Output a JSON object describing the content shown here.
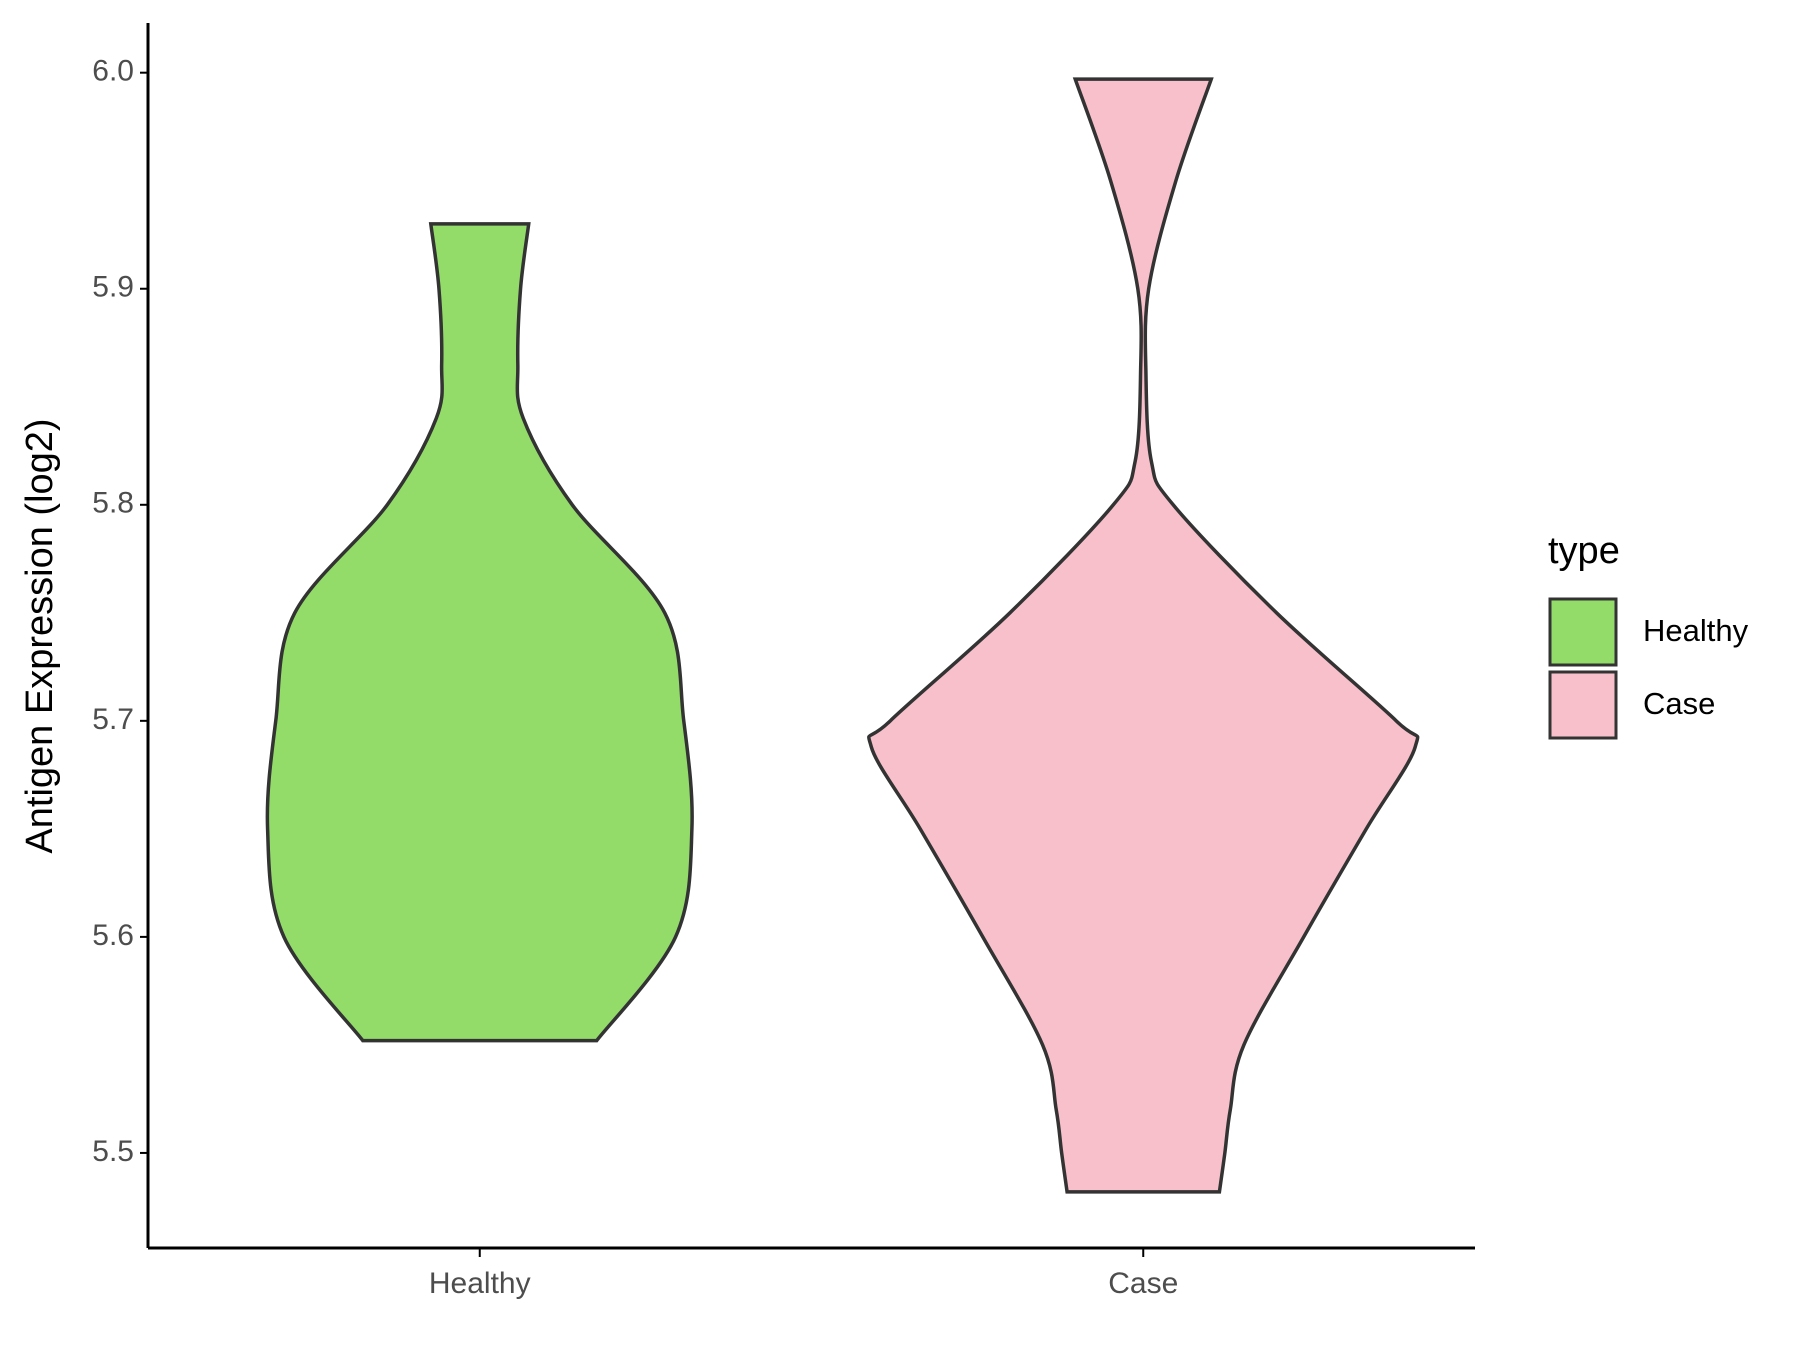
{
  "chart_data": {
    "type": "violin",
    "y_label": "Antigen Expression (log2)",
    "categories": [
      "Healthy",
      "Case"
    ],
    "legend_title": "type",
    "legend_position": "right",
    "ylim": [
      5.456,
      6.023
    ],
    "yticks": [
      {
        "value": 5.5,
        "label": "5.5"
      },
      {
        "value": 5.6,
        "label": "5.6"
      },
      {
        "value": 5.7,
        "label": "5.7"
      },
      {
        "value": 5.8,
        "label": "5.8"
      },
      {
        "value": 5.9,
        "label": "5.9"
      },
      {
        "value": 6.0,
        "label": "6.0"
      }
    ],
    "series": [
      {
        "name": "Healthy",
        "color": "#93dc6a",
        "y": [
          5.552,
          5.6,
          5.65,
          5.7,
          5.75,
          5.8,
          5.84,
          5.865,
          5.9,
          5.93
        ],
        "density": [
          0.43,
          0.72,
          0.78,
          0.75,
          0.68,
          0.34,
          0.16,
          0.14,
          0.15,
          0.18
        ]
      },
      {
        "name": "Case",
        "color": "#f8c0cb",
        "y": [
          5.482,
          5.5,
          5.52,
          5.55,
          5.6,
          5.65,
          5.688,
          5.7,
          5.75,
          5.8,
          5.82,
          5.86,
          5.9,
          5.95,
          5.997
        ],
        "density": [
          0.28,
          0.3,
          0.32,
          0.37,
          0.59,
          0.82,
          1,
          0.93,
          0.49,
          0.11,
          0.03,
          0.01,
          0.02,
          0.12,
          0.25
        ]
      }
    ]
  }
}
